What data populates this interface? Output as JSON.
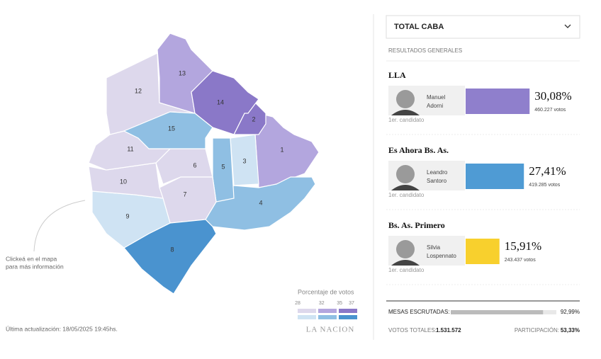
{
  "map": {
    "hint_line1": "Clickeá en el mapa",
    "hint_line2": "para más información",
    "updated": "Última actualización: 18/05/2025 19:45hs.",
    "communes": [
      "1",
      "2",
      "3",
      "4",
      "5",
      "6",
      "7",
      "8",
      "9",
      "10",
      "11",
      "12",
      "13",
      "14",
      "15"
    ],
    "legend": {
      "title": "Porcentaje de votos",
      "ticks": [
        28,
        32,
        35,
        37
      ]
    },
    "brand": "LA NACION"
  },
  "panel": {
    "selector": "TOTAL CABA",
    "section": "RESULTADOS GENERALES",
    "candidates": [
      {
        "party": "LLA",
        "name1": "Manuel",
        "name2": "Adorni",
        "percent_label": "30,08%",
        "percent": 30.08,
        "votes": "460.227 votos",
        "role": "1er. candidato",
        "color": "#8f7fcc"
      },
      {
        "party": "Es Ahora Bs. As.",
        "name1": "Leandro",
        "name2": "Santoro",
        "percent_label": "27,41%",
        "percent": 27.41,
        "votes": "419.285 votos",
        "role": "1er. candidato",
        "color": "#4f9bd4"
      },
      {
        "party": "Bs. As. Primero",
        "name1": "Silvia",
        "name2": "Lospennato",
        "percent_label": "15,91%",
        "percent": 15.91,
        "votes": "243.437 votos",
        "role": "1er. candidato",
        "color": "#f8d02d"
      }
    ],
    "tables_label": "MESAS ESCRUTADAS:",
    "tables_label_value": "92,99%",
    "tables_value": 92.99,
    "total_label": "VOTOS TOTALES:",
    "total_value": "1.531.572",
    "turnout_label": "PARTICIPACIÓN:",
    "turnout_value": "53,33%"
  }
}
